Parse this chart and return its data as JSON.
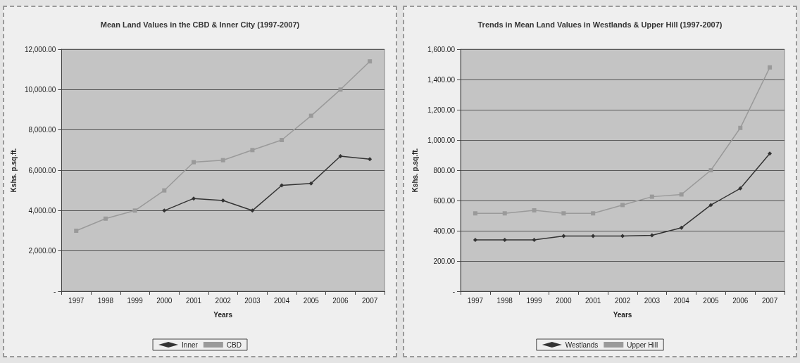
{
  "chart_data": [
    {
      "type": "line",
      "title": "Mean Land Values in the CBD & Inner City (1997-2007)",
      "xlabel": "Years",
      "ylabel": "Kshs. p.sq.ft.",
      "categories": [
        "1997",
        "1998",
        "1999",
        "2000",
        "2001",
        "2002",
        "2003",
        "2004",
        "2005",
        "2006",
        "2007"
      ],
      "series": [
        {
          "name": "Inner",
          "color": "#333333",
          "marker": "diamond",
          "values": [
            null,
            null,
            null,
            4000,
            4600,
            4500,
            4000,
            5250,
            5350,
            6700,
            6550
          ]
        },
        {
          "name": "CBD",
          "color": "#9a9a9a",
          "marker": "square",
          "values": [
            3000,
            3600,
            4000,
            5000,
            6400,
            6500,
            7000,
            7500,
            8700,
            10000,
            11400
          ]
        }
      ],
      "ylim": [
        0,
        12000
      ],
      "yticks": [
        {
          "value": 0,
          "label": "-"
        },
        {
          "value": 2000,
          "label": "2,000.00"
        },
        {
          "value": 4000,
          "label": "4,000.00"
        },
        {
          "value": 6000,
          "label": "6,000.00"
        },
        {
          "value": 8000,
          "label": "8,000.00"
        },
        {
          "value": 10000,
          "label": "10,000.00"
        },
        {
          "value": 12000,
          "label": "12,000.00"
        }
      ],
      "grid": "y",
      "legend": "bottom"
    },
    {
      "type": "line",
      "title": "Trends in Mean Land Values in Westlands & Upper Hill (1997-2007)",
      "xlabel": "Years",
      "ylabel": "Kshs. p.sq.ft.",
      "categories": [
        "1997",
        "1998",
        "1999",
        "2000",
        "2001",
        "2002",
        "2003",
        "2004",
        "2005",
        "2006",
        "2007"
      ],
      "series": [
        {
          "name": "Westlands",
          "color": "#333333",
          "marker": "diamond",
          "values": [
            340,
            340,
            340,
            365,
            365,
            365,
            370,
            420,
            570,
            680,
            910
          ]
        },
        {
          "name": "Upper Hill",
          "color": "#9a9a9a",
          "marker": "square",
          "values": [
            515,
            515,
            535,
            515,
            515,
            570,
            625,
            640,
            800,
            1080,
            1480
          ]
        }
      ],
      "ylim": [
        0,
        1600
      ],
      "yticks": [
        {
          "value": 0,
          "label": "-"
        },
        {
          "value": 200,
          "label": "200.00"
        },
        {
          "value": 400,
          "label": "400.00"
        },
        {
          "value": 600,
          "label": "600.00"
        },
        {
          "value": 800,
          "label": "800.00"
        },
        {
          "value": 1000,
          "label": "1,000.00"
        },
        {
          "value": 1200,
          "label": "1,200.00"
        },
        {
          "value": 1400,
          "label": "1,400.00"
        },
        {
          "value": 1600,
          "label": "1,600.00"
        }
      ],
      "grid": "y",
      "legend": "bottom"
    }
  ]
}
